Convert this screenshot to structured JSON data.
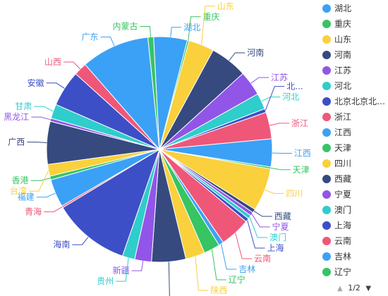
{
  "chart_data": {
    "type": "pie",
    "slices": [
      {
        "name": "湖北",
        "value": 5.4,
        "color": "#3ba1f6"
      },
      {
        "name": "重庆",
        "value": 0.3,
        "color": "#37c463"
      },
      {
        "name": "山东",
        "value": 4.1,
        "color": "#fad03c"
      },
      {
        "name": "河南",
        "value": 6.0,
        "color": "#364a80"
      },
      {
        "name": "江苏",
        "value": 4.0,
        "color": "#9155e8"
      },
      {
        "name": "河北",
        "value": 2.6,
        "color": "#2fcdcb"
      },
      {
        "name": "北京北京北京北京北京",
        "value": 0.6,
        "color": "#3d4fc6"
      },
      {
        "name": "浙江",
        "value": 4.3,
        "color": "#ef5779"
      },
      {
        "name": "江西",
        "value": 4.5,
        "color": "#3ba1f6"
      },
      {
        "name": "天津",
        "value": 0.3,
        "color": "#37c463"
      },
      {
        "name": "四川",
        "value": 6.9,
        "color": "#fad03c"
      },
      {
        "name": "西藏",
        "value": 0.6,
        "color": "#364a80"
      },
      {
        "name": "宁夏",
        "value": 0.6,
        "color": "#9155e8"
      },
      {
        "name": "澳门",
        "value": 0.6,
        "color": "#2fcdcb"
      },
      {
        "name": "上海",
        "value": 0.6,
        "color": "#3d4fc6"
      },
      {
        "name": "云南",
        "value": 4.9,
        "color": "#ef5779"
      },
      {
        "name": "吉林",
        "value": 0.8,
        "color": "#3ba1f6"
      },
      {
        "name": "辽宁",
        "value": 2.6,
        "color": "#37c463"
      },
      {
        "name": "陕西",
        "value": 3.1,
        "color": "#fad03c"
      },
      {
        "name": "湖南",
        "value": 5.5,
        "color": "#364a80"
      },
      {
        "name": "新疆",
        "value": 2.7,
        "color": "#9155e8"
      },
      {
        "name": "贵州",
        "value": 2.0,
        "color": "#2fcdcb"
      },
      {
        "name": "海南",
        "value": 12.4,
        "color": "#3d4fc6"
      },
      {
        "name": "青海",
        "value": 0.3,
        "color": "#ef5779"
      },
      {
        "name": "福建",
        "value": 4.5,
        "color": "#3ba1f6"
      },
      {
        "name": "香港",
        "value": 0.6,
        "color": "#37c463"
      },
      {
        "name": "台湾",
        "value": 1.9,
        "color": "#fad03c"
      },
      {
        "name": "广西",
        "value": 6.9,
        "color": "#364a80"
      },
      {
        "name": "黑龙江",
        "value": 0.5,
        "color": "#9155e8"
      },
      {
        "name": "甘肃",
        "value": 2.3,
        "color": "#2fcdcb"
      },
      {
        "name": "安徽",
        "value": 5.8,
        "color": "#3d4fc6"
      },
      {
        "name": "山西",
        "value": 2.1,
        "color": "#ef5779"
      },
      {
        "name": "广东",
        "value": 11.0,
        "color": "#3ba1f6"
      },
      {
        "name": "内蒙古",
        "value": 0.9,
        "color": "#37c463"
      }
    ]
  },
  "legend": {
    "items": [
      {
        "label": "湖北",
        "color": "#3ba1f6"
      },
      {
        "label": "重庆",
        "color": "#37c463"
      },
      {
        "label": "山东",
        "color": "#fad03c"
      },
      {
        "label": "河南",
        "color": "#364a80"
      },
      {
        "label": "江苏",
        "color": "#9155e8"
      },
      {
        "label": "河北",
        "color": "#2fcdcb"
      },
      {
        "label": "北京北京北京北京北京",
        "color": "#3d4fc6"
      },
      {
        "label": "浙江",
        "color": "#ef5779"
      },
      {
        "label": "江西",
        "color": "#3ba1f6"
      },
      {
        "label": "天津",
        "color": "#37c463"
      },
      {
        "label": "四川",
        "color": "#fad03c"
      },
      {
        "label": "西藏",
        "color": "#364a80"
      },
      {
        "label": "宁夏",
        "color": "#9155e8"
      },
      {
        "label": "澳门",
        "color": "#2fcdcb"
      },
      {
        "label": "上海",
        "color": "#3d4fc6"
      },
      {
        "label": "云南",
        "color": "#ef5779"
      },
      {
        "label": "吉林",
        "color": "#3ba1f6"
      },
      {
        "label": "辽宁",
        "color": "#37c463"
      }
    ],
    "pager": {
      "text": "1/2",
      "prev_icon": "triangle-up-icon",
      "next_icon": "triangle-down-icon"
    }
  }
}
